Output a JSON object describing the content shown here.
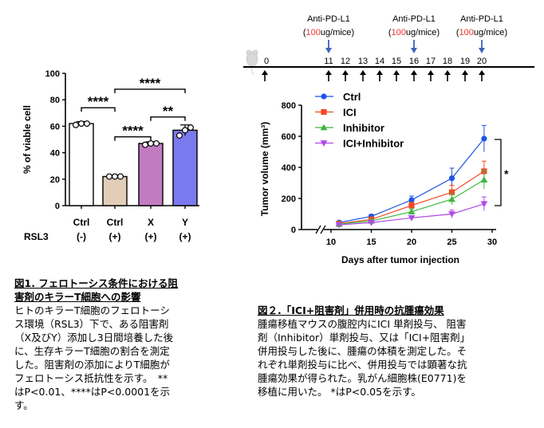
{
  "chart_data": [
    {
      "type": "bar",
      "title": "",
      "ylabel": "% of viable cell",
      "ylim": [
        0,
        100
      ],
      "yticks": [
        0,
        20,
        40,
        60,
        80,
        100
      ],
      "row_label": "RSL3",
      "categories": [
        {
          "name": "Ctrl",
          "cond": "(-)"
        },
        {
          "name": "Ctrl",
          "cond": "(+)"
        },
        {
          "name": "X",
          "cond": "(+)"
        },
        {
          "name": "Y",
          "cond": "(+)"
        }
      ],
      "values": [
        62,
        22,
        47,
        57
      ],
      "errors": [
        1.5,
        1.0,
        1.2,
        4.0
      ],
      "points": [
        [
          61,
          62,
          62
        ],
        [
          22,
          22,
          22
        ],
        [
          46,
          47,
          47
        ],
        [
          53,
          57,
          59
        ]
      ],
      "colors": [
        "#ffffff",
        "#e2cdb8",
        "#c27bc0",
        "#7b79ee"
      ],
      "significance": [
        {
          "from": 0,
          "to": 1,
          "label": "****",
          "y": 74
        },
        {
          "from": 1,
          "to": 2,
          "label": "****",
          "y": 52
        },
        {
          "from": 2,
          "to": 3,
          "label": "**",
          "y": 67
        },
        {
          "from": 1,
          "to": 3,
          "label": "****",
          "y": 88
        }
      ]
    },
    {
      "type": "line",
      "ylabel": "Tumor volume (mm³)",
      "xlabel": "Days after tumor injection",
      "ylim": [
        0,
        800
      ],
      "yticks": [
        0,
        200,
        400,
        600,
        800
      ],
      "xticks": [
        10,
        15,
        20,
        25,
        30
      ],
      "x": [
        11,
        15,
        20,
        25,
        29
      ],
      "series": [
        {
          "name": "Ctrl",
          "color": "#1f55e6",
          "marker": "circle",
          "values": [
            45,
            85,
            190,
            330,
            585
          ],
          "errors": [
            8,
            12,
            25,
            65,
            85
          ]
        },
        {
          "name": "ICI",
          "color": "#f04a23",
          "marker": "square",
          "values": [
            38,
            65,
            155,
            240,
            375
          ],
          "errors": [
            6,
            10,
            20,
            45,
            65
          ]
        },
        {
          "name": "Inhibitor",
          "color": "#3fb83f",
          "marker": "triangle",
          "values": [
            35,
            55,
            115,
            195,
            320
          ],
          "errors": [
            6,
            9,
            18,
            35,
            60
          ]
        },
        {
          "name": "ICI+Inhibitor",
          "color": "#b24ae8",
          "marker": "triangle-down",
          "values": [
            30,
            45,
            75,
            100,
            165
          ],
          "errors": [
            5,
            8,
            12,
            25,
            45
          ]
        }
      ],
      "significance": {
        "label": "*"
      },
      "timeline": {
        "start_label": "0",
        "days": [
          "11",
          "12",
          "13",
          "14",
          "15",
          "16",
          "17",
          "18",
          "19",
          "20"
        ],
        "injections": [
          {
            "day": "11",
            "name": "Anti-PD-L1",
            "open": "(",
            "dose": "100",
            "unit": "ug/mice",
            "close": ")"
          },
          {
            "day": "16",
            "name": "Anti-PD-L1",
            "open": "(",
            "dose": "100",
            "unit": "ug/mice",
            "close": ")"
          },
          {
            "day": "20",
            "name": "Anti-PD-L1",
            "open": "(",
            "dose": "100",
            "unit": "ug/mice",
            "close": ")"
          }
        ]
      }
    }
  ],
  "fig1": {
    "title_line1": "図1. フェロトーシス条件における阻",
    "title_line2": "害剤のキラーT細胞への影響",
    "body": [
      "ヒトのキラーT細胞のフェロトーシ",
      "ス環境（RSL3）下で、ある阻害剤",
      "（X及びY）添加し3日間培養した後",
      "に、生存キラーT細胞の割合を測定",
      "した。阻害剤の添加によりT細胞が",
      "フェロトーシス抵抗性を示す。　**",
      "はP<0.01、****はP<0.0001を示",
      "す。"
    ]
  },
  "fig2": {
    "title": "図２.「ICI+阻害剤」併用時の抗腫瘍効果",
    "body": [
      "腫瘍移植マウスの腹腔内にICI 単剤投与、 阻害",
      "剤（Inhibitor）単剤投与、又は「ICI+阻害剤」",
      "併用投与した後に、腫瘍の体積を測定した。そ",
      "れぞれ単剤投与に比べ、併用投与では顕著な抗",
      "腫瘍効果が得られた。乳がん細胞株(E0771)を",
      "移植に用いた。 *はP<0.05を示す。"
    ]
  }
}
